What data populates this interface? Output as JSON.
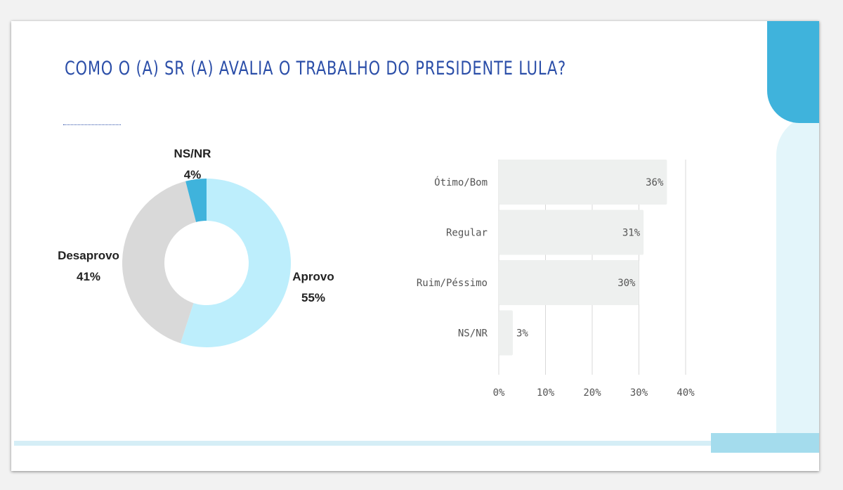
{
  "title": "COMO O (A) SR (A) AVALIA O TRABALHO DO PRESIDENTE LULA?",
  "colors": {
    "title": "#2b4ea8",
    "approve": "#bdeefc",
    "disapprove": "#d9d9d9",
    "nsnr": "#3fb3dc",
    "bar": "#eef0ef",
    "accent": "#3fb3dc"
  },
  "chart_data": [
    {
      "type": "pie",
      "variant": "donut",
      "slices": [
        {
          "label": "Aprovo",
          "value": 55,
          "value_label": "55%"
        },
        {
          "label": "Desaprovo",
          "value": 41,
          "value_label": "41%"
        },
        {
          "label": "NS/NR",
          "value": 4,
          "value_label": "4%"
        }
      ]
    },
    {
      "type": "bar",
      "orientation": "horizontal",
      "categories": [
        "Ótimo/Bom",
        "Regular",
        "Ruim/Péssimo",
        "NS/NR"
      ],
      "values": [
        36,
        31,
        30,
        3
      ],
      "value_labels": [
        "36%",
        "31%",
        "30%",
        "3%"
      ],
      "xlim": [
        0,
        40
      ],
      "xticks": [
        0,
        10,
        20,
        30,
        40
      ],
      "xtick_labels": [
        "0%",
        "10%",
        "20%",
        "30%",
        "40%"
      ],
      "grid": true
    }
  ]
}
